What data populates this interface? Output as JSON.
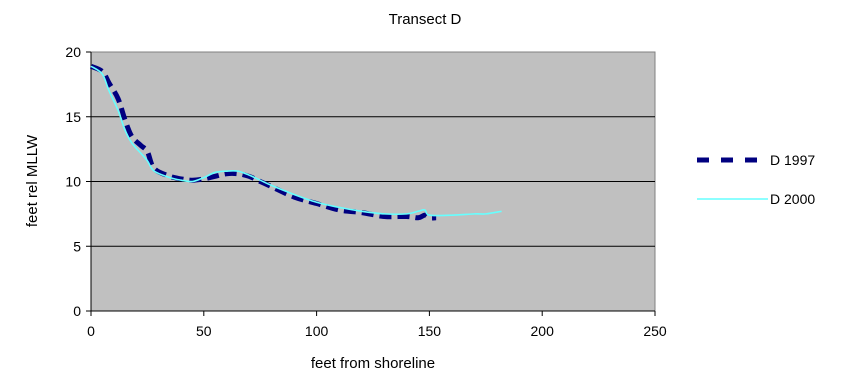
{
  "chart_data": {
    "type": "line",
    "title": "Transect D",
    "xlabel": "feet from shoreline",
    "ylabel": "feet rel MLLW",
    "xlim": [
      0,
      250
    ],
    "ylim": [
      0,
      20
    ],
    "x_ticks": [
      "0",
      "50",
      "100",
      "150",
      "200",
      "250"
    ],
    "y_ticks": [
      "0",
      "5",
      "10",
      "15",
      "20"
    ],
    "grid": "horizontal",
    "plot_background": "#C0C0C0",
    "legend_position": "right",
    "series": [
      {
        "name": "D 1997",
        "color": "#000080",
        "style": "dashed",
        "x": [
          0,
          5,
          8,
          12,
          15,
          18,
          22,
          25,
          28,
          35,
          40,
          45,
          50,
          55,
          60,
          65,
          70,
          75,
          80,
          90,
          100,
          110,
          120,
          130,
          140,
          145,
          148,
          150,
          153
        ],
        "y": [
          18.9,
          18.5,
          17.6,
          16.4,
          14.8,
          13.5,
          12.8,
          12.3,
          11.0,
          10.4,
          10.2,
          10.1,
          10.2,
          10.4,
          10.6,
          10.6,
          10.4,
          10.0,
          9.6,
          8.8,
          8.3,
          7.8,
          7.6,
          7.3,
          7.3,
          7.2,
          7.4,
          7.2,
          7.2
        ]
      },
      {
        "name": "D 2000",
        "color": "#66FFFF",
        "style": "solid",
        "x": [
          0,
          5,
          8,
          12,
          15,
          18,
          22,
          25,
          28,
          35,
          40,
          45,
          50,
          55,
          60,
          65,
          70,
          75,
          80,
          90,
          100,
          110,
          120,
          130,
          140,
          145,
          148,
          150,
          160,
          170,
          175,
          182
        ],
        "y": [
          18.9,
          18.3,
          17.0,
          15.5,
          14.0,
          13.0,
          12.2,
          11.6,
          10.8,
          10.3,
          10.1,
          10.0,
          10.3,
          10.7,
          10.8,
          10.8,
          10.5,
          10.1,
          9.7,
          9.0,
          8.4,
          8.0,
          7.7,
          7.5,
          7.5,
          7.7,
          7.8,
          7.4,
          7.4,
          7.5,
          7.5,
          7.7
        ]
      }
    ]
  }
}
